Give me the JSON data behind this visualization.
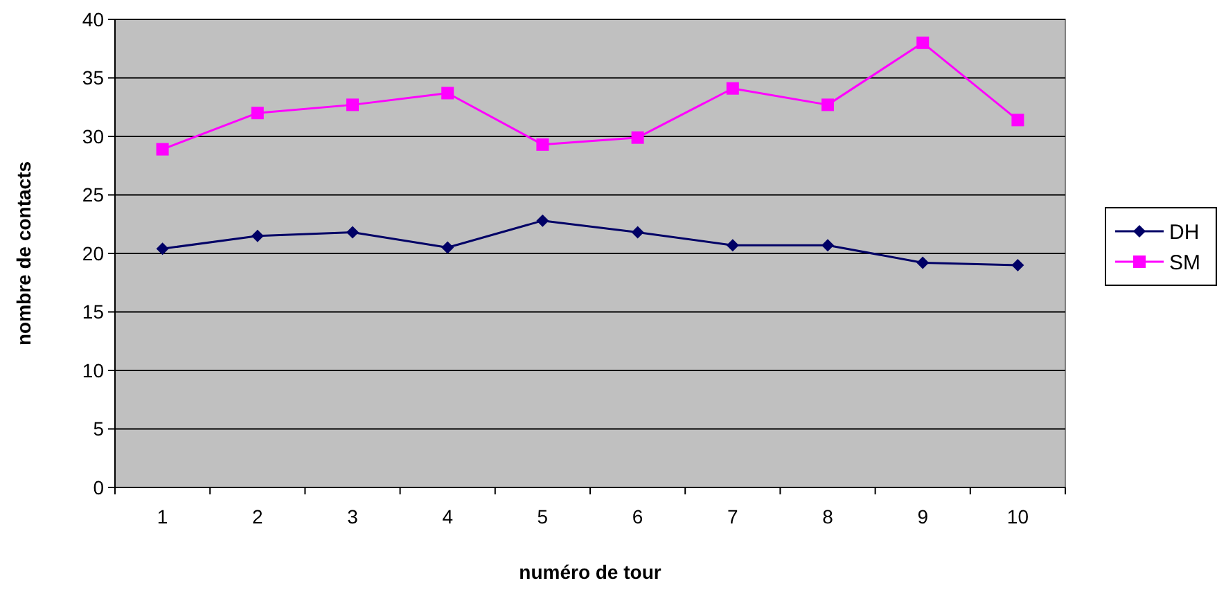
{
  "chart_data": {
    "type": "line",
    "xlabel": "numéro de tour",
    "ylabel": "nombre de contacts",
    "categories": [
      "1",
      "2",
      "3",
      "4",
      "5",
      "6",
      "7",
      "8",
      "9",
      "10"
    ],
    "series": [
      {
        "name": "DH",
        "color": "#000066",
        "marker": "diamond",
        "values": [
          20.4,
          21.5,
          21.8,
          20.5,
          22.8,
          21.8,
          20.7,
          20.7,
          19.2,
          19.0
        ]
      },
      {
        "name": "SM",
        "color": "#ff00ff",
        "marker": "square",
        "values": [
          28.9,
          32.0,
          32.7,
          33.7,
          29.3,
          29.9,
          34.1,
          32.7,
          38.0,
          31.4
        ]
      }
    ],
    "ylim": [
      0,
      40
    ],
    "yticks": [
      0,
      5,
      10,
      15,
      20,
      25,
      30,
      35,
      40
    ],
    "grid": "y",
    "legend": "right"
  }
}
